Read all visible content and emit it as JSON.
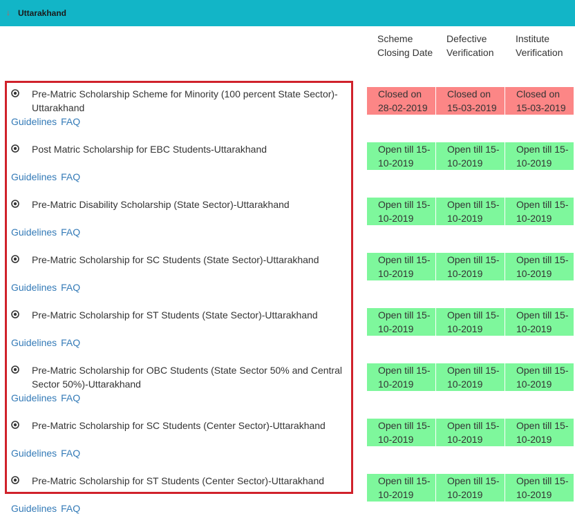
{
  "header": {
    "title": "Uttarakhand",
    "collapse_icon": "chevron-down-icon"
  },
  "columns": {
    "closing": "Scheme Closing Date",
    "defective": "Defective Verification",
    "institute": "Institute Verification"
  },
  "colors": {
    "header_bg": "#12b5c7",
    "open_bg": "#7ef79c",
    "closed_bg": "#fc8686",
    "link": "#337ab7",
    "highlight_border": "#d0212b"
  },
  "schemes": [
    {
      "name": "Pre-Matric Scholarship Scheme for Minority (100 percent State Sector)-Uttarakhand",
      "guidelines": "Guidelines",
      "faq": "FAQ",
      "state": "closed",
      "closing": "Closed on 28-02-2019",
      "defective": "Closed on 15-03-2019",
      "institute": "Closed on 15-03-2019"
    },
    {
      "name": "Post Matric Scholarship for EBC Students-Uttarakhand",
      "guidelines": "Guidelines",
      "faq": "FAQ",
      "state": "open",
      "closing": "Open till 15-10-2019",
      "defective": "Open till 15-10-2019",
      "institute": "Open till 15-10-2019"
    },
    {
      "name": "Pre-Matric Disability Scholarship (State Sector)-Uttarakhand",
      "guidelines": "Guidelines",
      "faq": "FAQ",
      "state": "open",
      "closing": "Open till 15-10-2019",
      "defective": "Open till 15-10-2019",
      "institute": "Open till 15-10-2019"
    },
    {
      "name": "Pre-Matric Scholarship for SC Students (State Sector)-Uttarakhand",
      "guidelines": "Guidelines",
      "faq": "FAQ",
      "state": "open",
      "closing": "Open till 15-10-2019",
      "defective": "Open till 15-10-2019",
      "institute": "Open till 15-10-2019"
    },
    {
      "name": "Pre-Matric Scholarship for ST Students (State Sector)-Uttarakhand",
      "guidelines": "Guidelines",
      "faq": "FAQ",
      "state": "open",
      "closing": "Open till 15-10-2019",
      "defective": "Open till 15-10-2019",
      "institute": "Open till 15-10-2019"
    },
    {
      "name": "Pre-Matric Scholarship for OBC Students (State Sector 50% and Central Sector 50%)-Uttarakhand",
      "guidelines": "Guidelines",
      "faq": "FAQ",
      "state": "open",
      "closing": "Open till 15-10-2019",
      "defective": "Open till 15-10-2019",
      "institute": "Open till 15-10-2019"
    },
    {
      "name": "Pre-Matric Scholarship for SC Students (Center Sector)-Uttarakhand",
      "guidelines": "Guidelines",
      "faq": "FAQ",
      "state": "open",
      "closing": "Open till 15-10-2019",
      "defective": "Open till 15-10-2019",
      "institute": "Open till 15-10-2019"
    },
    {
      "name": "Pre-Matric Scholarship for ST Students (Center Sector)-Uttarakhand",
      "guidelines": "Guidelines",
      "faq": "FAQ",
      "state": "open",
      "closing": "Open till 15-10-2019",
      "defective": "Open till 15-10-2019",
      "institute": "Open till 15-10-2019"
    }
  ]
}
